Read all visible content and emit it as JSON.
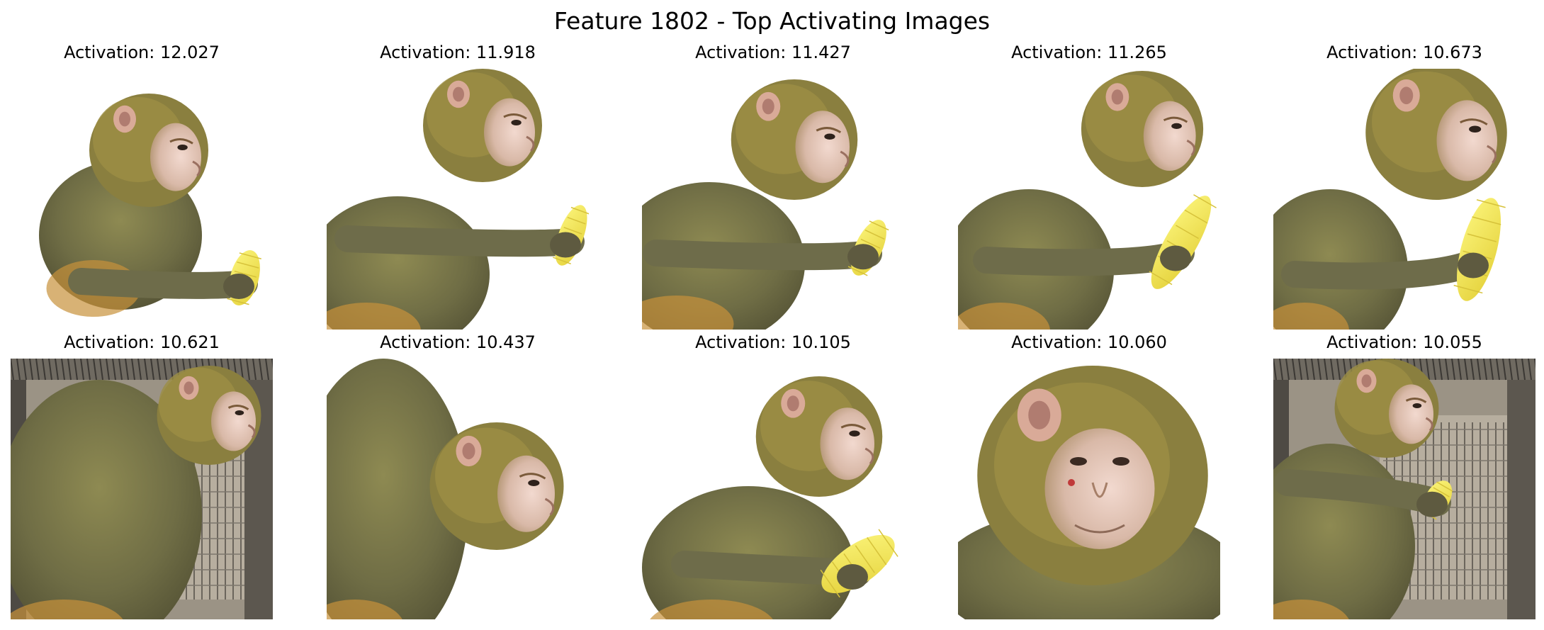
{
  "figure": {
    "title": "Feature 1802 - Top Activating Images"
  },
  "images": [
    {
      "label": "Activation: 12.027",
      "scene": "monkey-corn-profile-left",
      "background": "white"
    },
    {
      "label": "Activation: 11.918",
      "scene": "monkey-corn-profile-right",
      "background": "white"
    },
    {
      "label": "Activation: 11.427",
      "scene": "monkey-corn-profile-center",
      "background": "white"
    },
    {
      "label": "Activation: 11.265",
      "scene": "monkey-corn-front",
      "background": "white"
    },
    {
      "label": "Activation: 10.673",
      "scene": "monkey-eating-corn",
      "background": "white"
    },
    {
      "label": "Activation: 10.621",
      "scene": "monkey-back-in-cage",
      "background": "cage"
    },
    {
      "label": "Activation: 10.437",
      "scene": "monkey-looking-down",
      "background": "white"
    },
    {
      "label": "Activation: 10.105",
      "scene": "monkey-holding-corn",
      "background": "white"
    },
    {
      "label": "Activation: 10.060",
      "scene": "monkey-face-closeup",
      "background": "white"
    },
    {
      "label": "Activation: 10.055",
      "scene": "monkey-corn-in-cage",
      "background": "cage"
    }
  ]
}
